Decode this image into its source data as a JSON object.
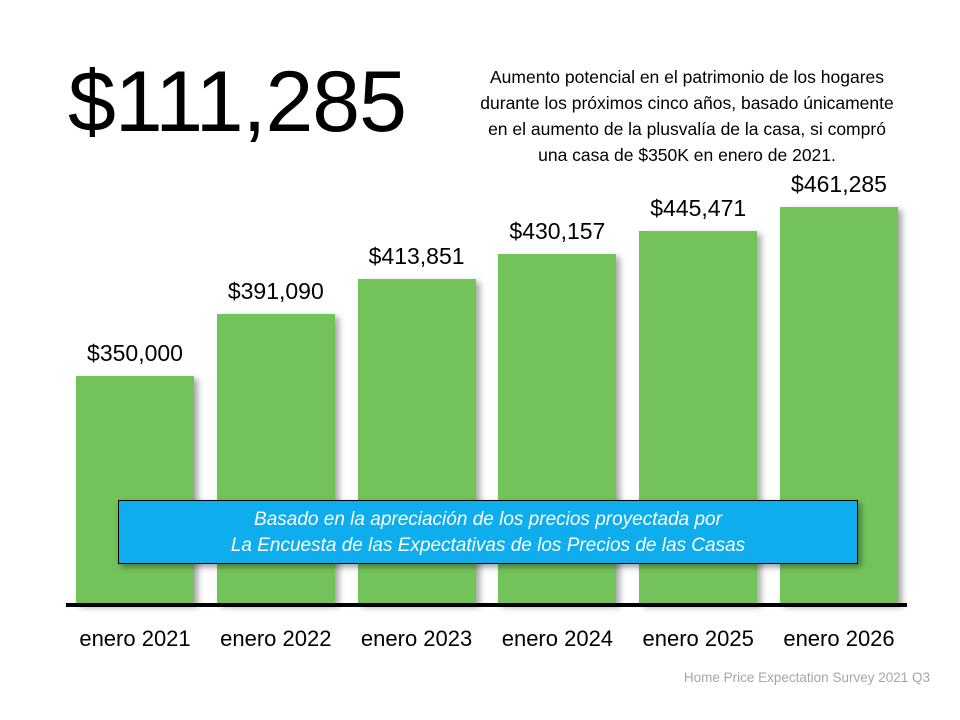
{
  "headline": "$111,285",
  "description": [
    "Aumento potencial en el patrimonio de los hogares",
    "durante los próximos cinco años, basado únicamente",
    "en el aumento de la plusvalía de la casa, si compró",
    "una casa  de $350K en enero de 2021."
  ],
  "note": {
    "line1": "Basado en la apreciación de los precios proyectada por",
    "line2": "La Encuesta de las Expectativas de los Precios de las Casas"
  },
  "source": "Home Price Expectation Survey 2021 Q3",
  "colors": {
    "bar": "#74C35A",
    "note_bg": "#0EADEE"
  },
  "chart_data": {
    "type": "bar",
    "categories": [
      "enero 2021",
      "enero 2022",
      "enero 2023",
      "enero 2024",
      "enero 2025",
      "enero 2026"
    ],
    "values": [
      350000,
      391090,
      413851,
      430157,
      445471,
      461285
    ],
    "data_labels": [
      "$350,000",
      "$391,090",
      "$413,851",
      "$430,157",
      "$445,471",
      "$461,285"
    ],
    "ylim": [
      200000,
      500000
    ],
    "grid": false,
    "y_axis_visible": false
  }
}
